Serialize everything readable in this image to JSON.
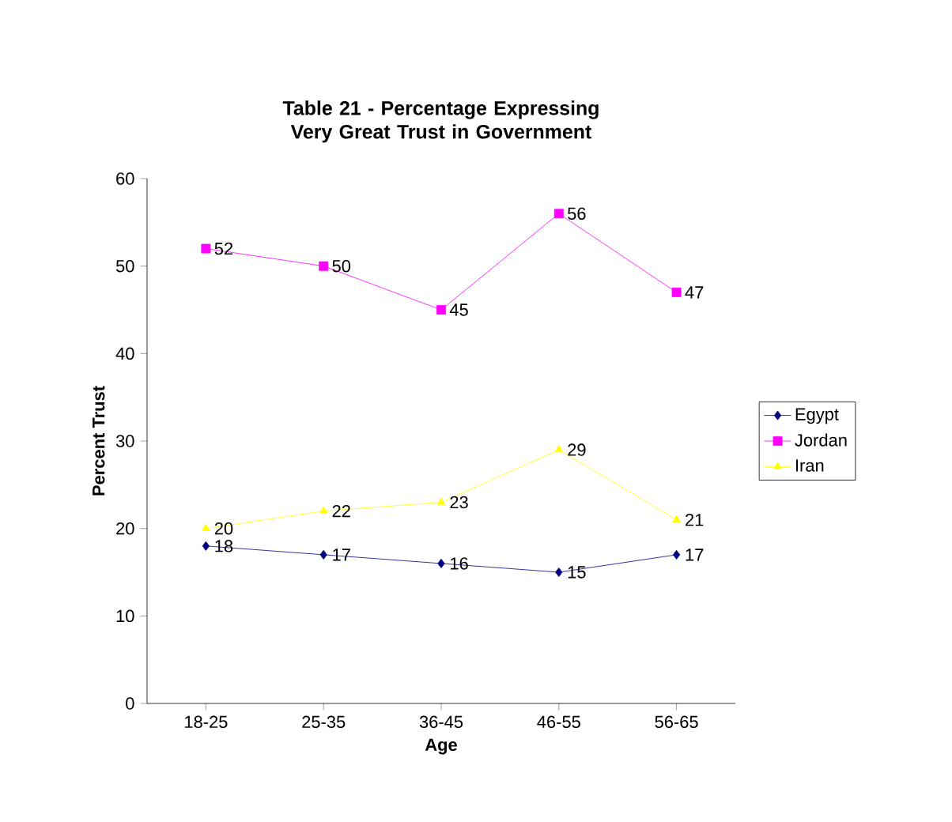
{
  "chart_data": {
    "type": "line",
    "title": "Table 21 - Percentage Expressing Very Great Trust in Government",
    "xlabel": "Age",
    "ylabel": "Percent Trust",
    "categories": [
      "18-25",
      "25-35",
      "36-45",
      "46-55",
      "56-65"
    ],
    "series": [
      {
        "name": "Egypt",
        "color": "#000080",
        "marker": "diamond",
        "values": [
          18,
          17,
          16,
          15,
          17
        ]
      },
      {
        "name": "Jordan",
        "color": "#ff00ff",
        "marker": "square",
        "values": [
          52,
          50,
          45,
          56,
          47
        ]
      },
      {
        "name": "Iran",
        "color": "#ffff00",
        "marker": "triangle",
        "values": [
          20,
          22,
          23,
          29,
          21
        ]
      }
    ],
    "ylim": [
      0,
      60
    ],
    "yticks": [
      0,
      10,
      20,
      30,
      40,
      50,
      60
    ],
    "data_labels": true,
    "legend": "right",
    "grid": false,
    "line_style": "solid"
  }
}
